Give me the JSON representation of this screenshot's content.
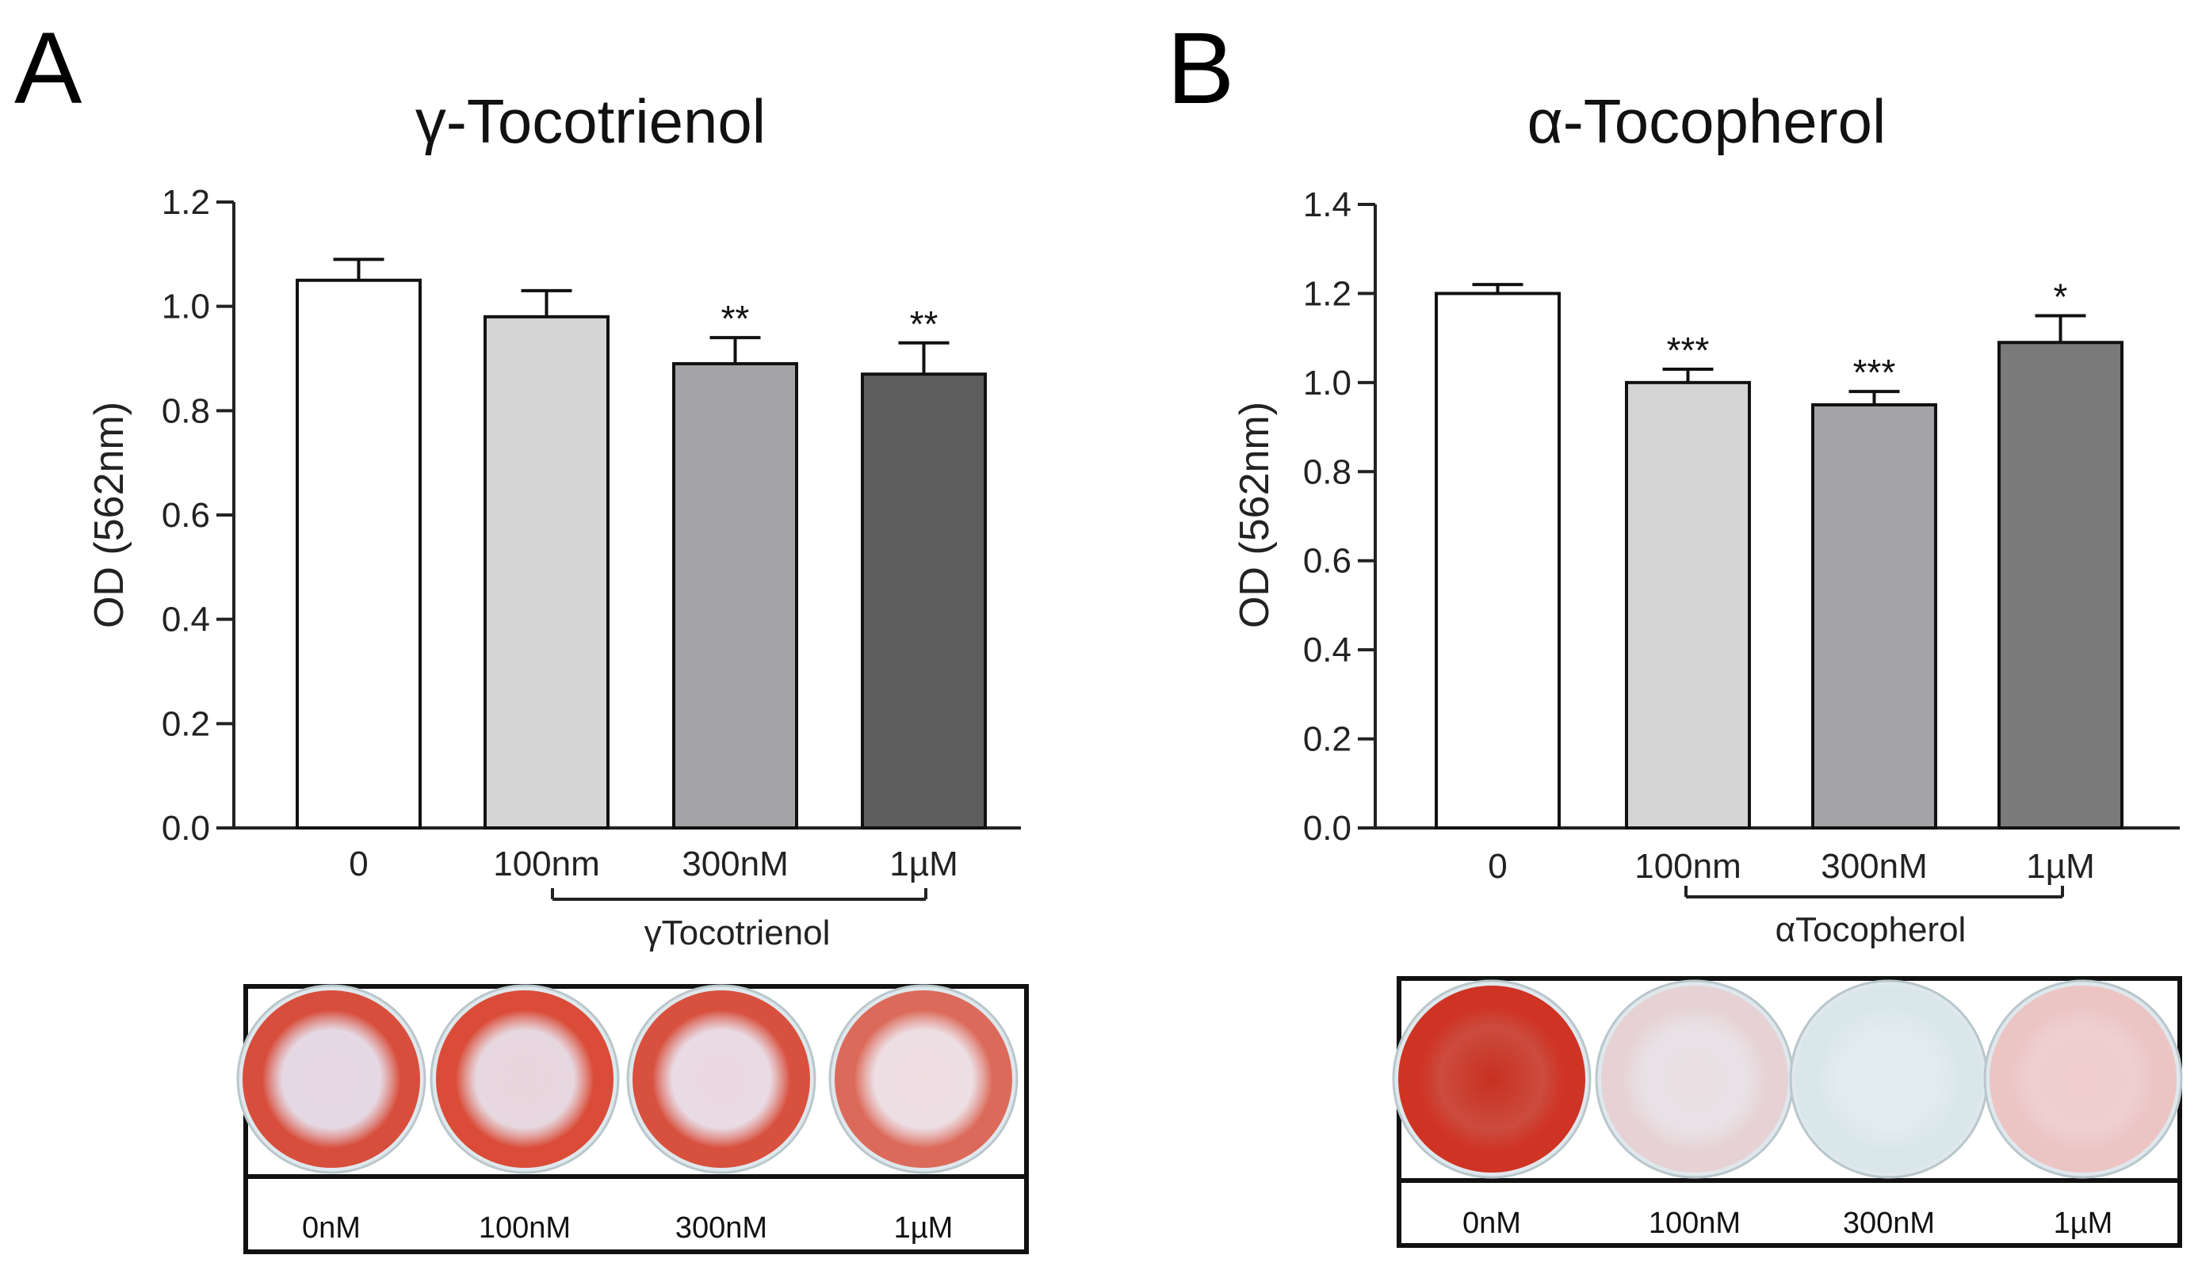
{
  "chart_data": [
    {
      "type": "bar",
      "panel_label": "A",
      "title": "γ-Tocotrienol",
      "ylabel": "OD (562nm)",
      "xlabel": "",
      "ylim": [
        0,
        1.2
      ],
      "yticks": [
        "0.0",
        "0.2",
        "0.4",
        "0.6",
        "0.8",
        "1.0",
        "1.2"
      ],
      "categories": [
        "0",
        "100nm",
        "300nM",
        "1µM"
      ],
      "values": [
        1.05,
        0.98,
        0.89,
        0.87
      ],
      "errors": [
        0.04,
        0.05,
        0.05,
        0.06
      ],
      "significance": [
        "",
        "",
        "**",
        "**"
      ],
      "bar_colors": [
        "#ffffff",
        "#d4d4d4",
        "#a4a4a8",
        "#5e5e5e"
      ],
      "group_label": "γTocotrienol",
      "plate": {
        "labels": [
          "0nM",
          "100nM",
          "300nM",
          "1µM"
        ],
        "well_colors": [
          "#d84e3c",
          "#da4c38",
          "#d8503e",
          "#dc6a5a"
        ],
        "well_center_colors": [
          "#e6d6e2",
          "#e8d4dc",
          "#ebd8e2",
          "#efdde2"
        ]
      }
    },
    {
      "type": "bar",
      "panel_label": "B",
      "title": "α-Tocopherol",
      "ylabel": "OD (562nm)",
      "xlabel": "",
      "ylim": [
        0,
        1.4
      ],
      "yticks": [
        "0.0",
        "0.2",
        "0.4",
        "0.6",
        "0.8",
        "1.0",
        "1.2",
        "1.4"
      ],
      "categories": [
        "0",
        "100nm",
        "300nM",
        "1µM"
      ],
      "values": [
        1.2,
        1.0,
        0.95,
        1.09
      ],
      "errors": [
        0.02,
        0.03,
        0.03,
        0.06
      ],
      "significance": [
        "",
        "***",
        "***",
        "*"
      ],
      "bar_colors": [
        "#ffffff",
        "#d4d4d4",
        "#a4a4a8",
        "#7a7a7a"
      ],
      "group_label": "αTocopherol",
      "plate": {
        "labels": [
          "0nM",
          "100nM",
          "300nM",
          "1µM"
        ],
        "well_colors": [
          "#cf3323",
          "#e6d2d4",
          "#d9e6ea",
          "#ecc4c4"
        ],
        "well_center_colors": [
          "#c83020",
          "#eae0e4",
          "#e2ecef",
          "#f0cccc"
        ]
      }
    }
  ]
}
